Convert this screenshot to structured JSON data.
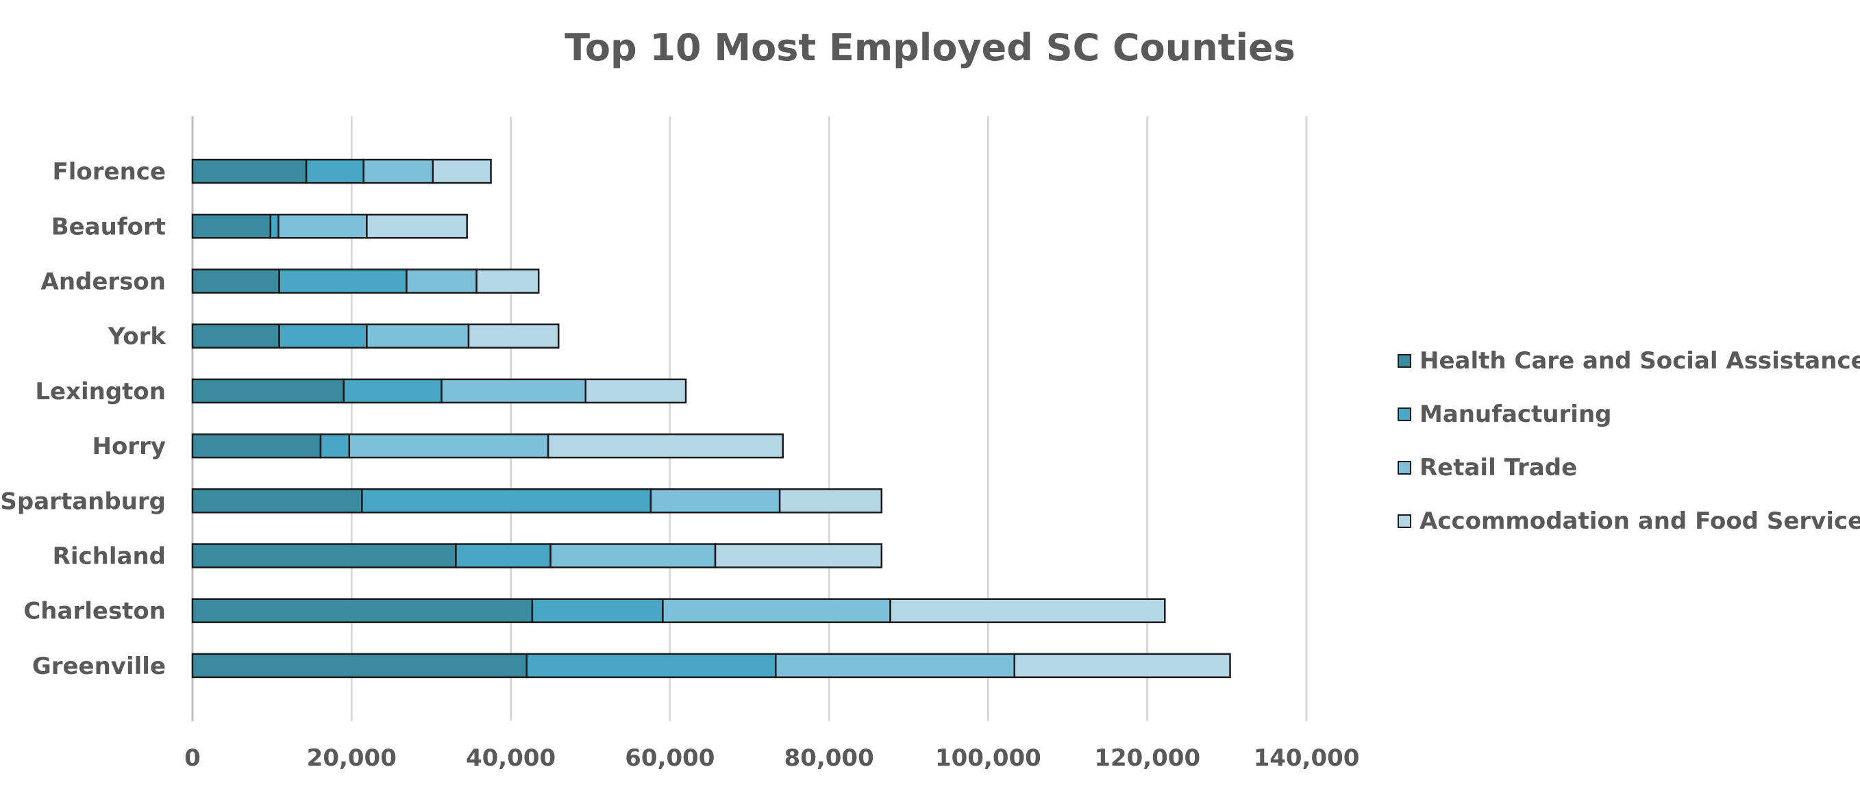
{
  "chart_data": {
    "type": "bar",
    "orientation": "horizontal",
    "stacked": true,
    "title": "Top 10 Most Employed SC Counties",
    "xlabel": "",
    "ylabel": "",
    "xlim": [
      0,
      140000
    ],
    "x_ticks": [
      0,
      20000,
      40000,
      60000,
      80000,
      100000,
      120000,
      140000
    ],
    "x_tick_labels": [
      "0",
      "20,000",
      "40,000",
      "60,000",
      "80,000",
      "100,000",
      "120,000",
      "140,000"
    ],
    "grid": "vertical",
    "legend_position": "right",
    "categories": [
      "Florence",
      "Beaufort",
      "Anderson",
      "York",
      "Lexington",
      "Horry",
      "Spartanburg",
      "Richland",
      "Charleston",
      "Greenville"
    ],
    "series": [
      {
        "name": "Health Care and Social Assistance",
        "color": "#3a8aa0",
        "values": [
          14300,
          9800,
          10900,
          10900,
          19000,
          16100,
          21300,
          33100,
          42700,
          42000
        ]
      },
      {
        "name": "Manufacturing",
        "color": "#47a7c5",
        "values": [
          7200,
          1000,
          16000,
          11000,
          12300,
          3600,
          36300,
          11900,
          16400,
          31300
        ]
      },
      {
        "name": "Retail Trade",
        "color": "#7ec0d9",
        "values": [
          8700,
          11100,
          8800,
          12800,
          18100,
          25000,
          16200,
          20700,
          28600,
          30000
        ]
      },
      {
        "name": "Accommodation and Food Services",
        "color": "#b4d6e6",
        "values": [
          7300,
          12600,
          7800,
          11300,
          12600,
          29500,
          12800,
          20900,
          34500,
          27100
        ]
      }
    ]
  }
}
